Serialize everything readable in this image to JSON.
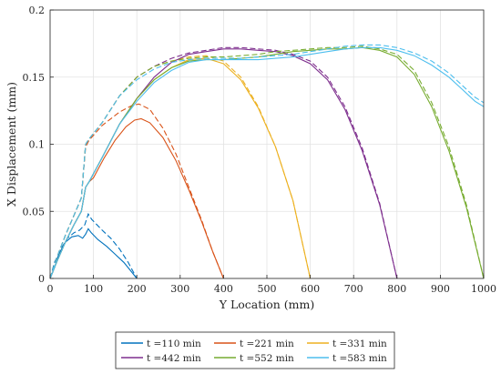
{
  "chart_data": {
    "type": "line",
    "xlabel": "Y Location (mm)",
    "ylabel": "X Displacement (mm)",
    "xlim": [
      0,
      1000
    ],
    "ylim": [
      0,
      0.2
    ],
    "xticks": [
      0,
      100,
      200,
      300,
      400,
      500,
      600,
      700,
      800,
      900,
      1000
    ],
    "yticks": [
      0,
      0.05,
      0.1,
      0.15,
      0.2
    ],
    "ytick_labels": [
      "0",
      "0.05",
      "0.1",
      "0.15",
      "0.2"
    ],
    "grid": true,
    "legend_position": "bottom",
    "series": [
      {
        "name": "t =110 min",
        "color": "#0072BD",
        "solid": [
          [
            0,
            0
          ],
          [
            10,
            0.008
          ],
          [
            20,
            0.018
          ],
          [
            35,
            0.027
          ],
          [
            50,
            0.031
          ],
          [
            65,
            0.032
          ],
          [
            75,
            0.03
          ],
          [
            82,
            0.033
          ],
          [
            88,
            0.037
          ],
          [
            95,
            0.034
          ],
          [
            110,
            0.029
          ],
          [
            130,
            0.024
          ],
          [
            150,
            0.018
          ],
          [
            170,
            0.012
          ],
          [
            185,
            0.006
          ],
          [
            200,
            0
          ]
        ],
        "dashed": [
          [
            0,
            0
          ],
          [
            10,
            0.012
          ],
          [
            25,
            0.022
          ],
          [
            40,
            0.03
          ],
          [
            55,
            0.034
          ],
          [
            68,
            0.036
          ],
          [
            80,
            0.04
          ],
          [
            88,
            0.048
          ],
          [
            96,
            0.044
          ],
          [
            120,
            0.036
          ],
          [
            140,
            0.03
          ],
          [
            160,
            0.022
          ],
          [
            180,
            0.012
          ],
          [
            200,
            0
          ]
        ]
      },
      {
        "name": "t =221 min",
        "color": "#D95319",
        "solid": [
          [
            0,
            0
          ],
          [
            15,
            0.012
          ],
          [
            35,
            0.027
          ],
          [
            55,
            0.04
          ],
          [
            72,
            0.05
          ],
          [
            82,
            0.068
          ],
          [
            90,
            0.072
          ],
          [
            100,
            0.075
          ],
          [
            125,
            0.09
          ],
          [
            150,
            0.103
          ],
          [
            175,
            0.113
          ],
          [
            195,
            0.118
          ],
          [
            210,
            0.119
          ],
          [
            230,
            0.116
          ],
          [
            260,
            0.105
          ],
          [
            290,
            0.088
          ],
          [
            320,
            0.066
          ],
          [
            350,
            0.042
          ],
          [
            375,
            0.02
          ],
          [
            400,
            0
          ]
        ],
        "dashed": [
          [
            0,
            0
          ],
          [
            15,
            0.015
          ],
          [
            35,
            0.032
          ],
          [
            55,
            0.047
          ],
          [
            72,
            0.06
          ],
          [
            82,
            0.098
          ],
          [
            90,
            0.103
          ],
          [
            120,
            0.114
          ],
          [
            160,
            0.124
          ],
          [
            190,
            0.129
          ],
          [
            205,
            0.13
          ],
          [
            230,
            0.126
          ],
          [
            260,
            0.112
          ],
          [
            290,
            0.093
          ],
          [
            320,
            0.068
          ],
          [
            350,
            0.043
          ],
          [
            375,
            0.02
          ],
          [
            400,
            0
          ]
        ]
      },
      {
        "name": "t =331 min",
        "color": "#EDB120",
        "solid": [
          [
            0,
            0
          ],
          [
            15,
            0.012
          ],
          [
            35,
            0.027
          ],
          [
            55,
            0.04
          ],
          [
            72,
            0.05
          ],
          [
            82,
            0.068
          ],
          [
            90,
            0.072
          ],
          [
            120,
            0.09
          ],
          [
            160,
            0.115
          ],
          [
            200,
            0.134
          ],
          [
            240,
            0.148
          ],
          [
            280,
            0.157
          ],
          [
            320,
            0.163
          ],
          [
            360,
            0.164
          ],
          [
            400,
            0.16
          ],
          [
            440,
            0.148
          ],
          [
            480,
            0.127
          ],
          [
            520,
            0.098
          ],
          [
            560,
            0.058
          ],
          [
            600,
            0
          ]
        ],
        "dashed": [
          [
            0,
            0
          ],
          [
            15,
            0.015
          ],
          [
            35,
            0.032
          ],
          [
            55,
            0.047
          ],
          [
            72,
            0.06
          ],
          [
            82,
            0.1
          ],
          [
            90,
            0.104
          ],
          [
            120,
            0.116
          ],
          [
            160,
            0.136
          ],
          [
            200,
            0.15
          ],
          [
            240,
            0.158
          ],
          [
            280,
            0.162
          ],
          [
            320,
            0.165
          ],
          [
            360,
            0.166
          ],
          [
            400,
            0.162
          ],
          [
            440,
            0.15
          ],
          [
            480,
            0.128
          ],
          [
            520,
            0.098
          ],
          [
            560,
            0.058
          ],
          [
            600,
            0
          ]
        ]
      },
      {
        "name": "t =442 min",
        "color": "#7E2F8E",
        "solid": [
          [
            0,
            0
          ],
          [
            15,
            0.012
          ],
          [
            35,
            0.027
          ],
          [
            55,
            0.04
          ],
          [
            72,
            0.05
          ],
          [
            82,
            0.068
          ],
          [
            90,
            0.072
          ],
          [
            120,
            0.09
          ],
          [
            160,
            0.115
          ],
          [
            200,
            0.134
          ],
          [
            240,
            0.15
          ],
          [
            280,
            0.161
          ],
          [
            320,
            0.167
          ],
          [
            360,
            0.169
          ],
          [
            400,
            0.171
          ],
          [
            440,
            0.171
          ],
          [
            480,
            0.17
          ],
          [
            520,
            0.169
          ],
          [
            560,
            0.166
          ],
          [
            600,
            0.16
          ],
          [
            640,
            0.148
          ],
          [
            680,
            0.126
          ],
          [
            720,
            0.095
          ],
          [
            760,
            0.055
          ],
          [
            800,
            0
          ]
        ],
        "dashed": [
          [
            0,
            0
          ],
          [
            15,
            0.015
          ],
          [
            35,
            0.032
          ],
          [
            55,
            0.047
          ],
          [
            72,
            0.06
          ],
          [
            82,
            0.1
          ],
          [
            90,
            0.104
          ],
          [
            120,
            0.116
          ],
          [
            160,
            0.136
          ],
          [
            200,
            0.15
          ],
          [
            240,
            0.158
          ],
          [
            280,
            0.164
          ],
          [
            320,
            0.168
          ],
          [
            360,
            0.17
          ],
          [
            400,
            0.172
          ],
          [
            440,
            0.172
          ],
          [
            480,
            0.171
          ],
          [
            520,
            0.17
          ],
          [
            560,
            0.167
          ],
          [
            600,
            0.162
          ],
          [
            640,
            0.15
          ],
          [
            680,
            0.128
          ],
          [
            720,
            0.097
          ],
          [
            760,
            0.056
          ],
          [
            800,
            0
          ]
        ]
      },
      {
        "name": "t =552 min",
        "color": "#77AC30",
        "solid": [
          [
            0,
            0
          ],
          [
            15,
            0.012
          ],
          [
            35,
            0.027
          ],
          [
            55,
            0.04
          ],
          [
            72,
            0.05
          ],
          [
            82,
            0.068
          ],
          [
            90,
            0.072
          ],
          [
            120,
            0.09
          ],
          [
            160,
            0.115
          ],
          [
            200,
            0.134
          ],
          [
            240,
            0.148
          ],
          [
            280,
            0.157
          ],
          [
            320,
            0.162
          ],
          [
            360,
            0.163
          ],
          [
            400,
            0.163
          ],
          [
            440,
            0.164
          ],
          [
            480,
            0.165
          ],
          [
            520,
            0.167
          ],
          [
            560,
            0.169
          ],
          [
            600,
            0.17
          ],
          [
            640,
            0.171
          ],
          [
            680,
            0.171
          ],
          [
            720,
            0.172
          ],
          [
            760,
            0.17
          ],
          [
            800,
            0.165
          ],
          [
            840,
            0.152
          ],
          [
            880,
            0.128
          ],
          [
            920,
            0.095
          ],
          [
            960,
            0.053
          ],
          [
            1000,
            0
          ]
        ],
        "dashed": [
          [
            0,
            0
          ],
          [
            15,
            0.015
          ],
          [
            35,
            0.032
          ],
          [
            55,
            0.047
          ],
          [
            72,
            0.06
          ],
          [
            82,
            0.1
          ],
          [
            90,
            0.104
          ],
          [
            120,
            0.116
          ],
          [
            160,
            0.136
          ],
          [
            200,
            0.15
          ],
          [
            240,
            0.158
          ],
          [
            280,
            0.162
          ],
          [
            320,
            0.164
          ],
          [
            360,
            0.165
          ],
          [
            400,
            0.165
          ],
          [
            440,
            0.166
          ],
          [
            480,
            0.167
          ],
          [
            520,
            0.169
          ],
          [
            560,
            0.17
          ],
          [
            600,
            0.171
          ],
          [
            640,
            0.172
          ],
          [
            680,
            0.172
          ],
          [
            720,
            0.173
          ],
          [
            760,
            0.171
          ],
          [
            800,
            0.167
          ],
          [
            840,
            0.155
          ],
          [
            880,
            0.131
          ],
          [
            920,
            0.098
          ],
          [
            960,
            0.055
          ],
          [
            1000,
            0
          ]
        ]
      },
      {
        "name": "t =583 min",
        "color": "#4DBEEE",
        "solid": [
          [
            0,
            0
          ],
          [
            15,
            0.012
          ],
          [
            35,
            0.027
          ],
          [
            55,
            0.04
          ],
          [
            72,
            0.05
          ],
          [
            82,
            0.068
          ],
          [
            90,
            0.072
          ],
          [
            120,
            0.09
          ],
          [
            160,
            0.115
          ],
          [
            200,
            0.132
          ],
          [
            240,
            0.146
          ],
          [
            280,
            0.155
          ],
          [
            320,
            0.161
          ],
          [
            360,
            0.163
          ],
          [
            400,
            0.163
          ],
          [
            440,
            0.163
          ],
          [
            480,
            0.163
          ],
          [
            520,
            0.164
          ],
          [
            560,
            0.165
          ],
          [
            600,
            0.167
          ],
          [
            640,
            0.169
          ],
          [
            680,
            0.171
          ],
          [
            720,
            0.172
          ],
          [
            760,
            0.172
          ],
          [
            800,
            0.17
          ],
          [
            840,
            0.166
          ],
          [
            880,
            0.159
          ],
          [
            920,
            0.15
          ],
          [
            950,
            0.141
          ],
          [
            980,
            0.132
          ],
          [
            1000,
            0.128
          ]
        ],
        "dashed": [
          [
            0,
            0
          ],
          [
            15,
            0.015
          ],
          [
            35,
            0.032
          ],
          [
            55,
            0.047
          ],
          [
            72,
            0.06
          ],
          [
            82,
            0.1
          ],
          [
            90,
            0.104
          ],
          [
            120,
            0.116
          ],
          [
            160,
            0.136
          ],
          [
            200,
            0.148
          ],
          [
            240,
            0.156
          ],
          [
            280,
            0.161
          ],
          [
            320,
            0.163
          ],
          [
            360,
            0.164
          ],
          [
            400,
            0.164
          ],
          [
            440,
            0.164
          ],
          [
            480,
            0.165
          ],
          [
            520,
            0.166
          ],
          [
            560,
            0.167
          ],
          [
            600,
            0.169
          ],
          [
            640,
            0.171
          ],
          [
            680,
            0.173
          ],
          [
            720,
            0.174
          ],
          [
            760,
            0.174
          ],
          [
            800,
            0.172
          ],
          [
            840,
            0.168
          ],
          [
            880,
            0.162
          ],
          [
            920,
            0.153
          ],
          [
            950,
            0.144
          ],
          [
            980,
            0.135
          ],
          [
            1000,
            0.131
          ]
        ]
      }
    ]
  }
}
